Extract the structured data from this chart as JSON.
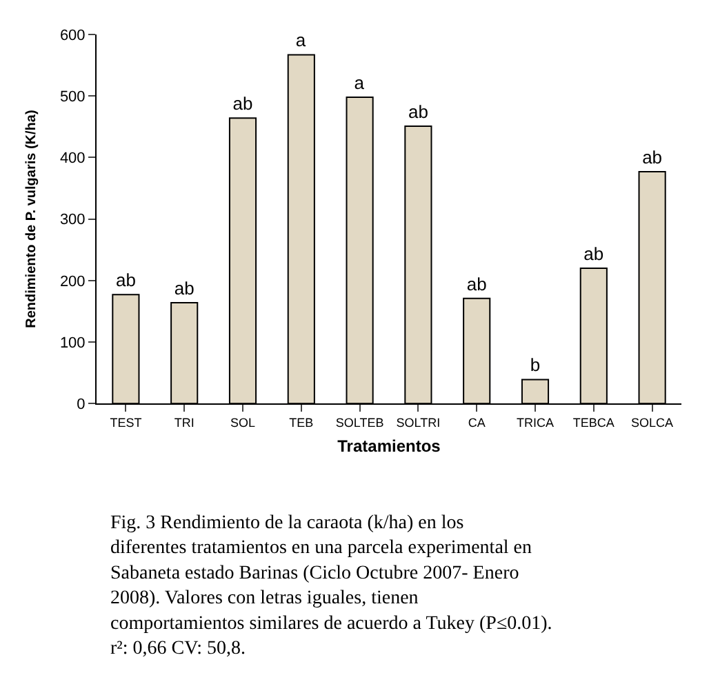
{
  "chart_data": {
    "type": "bar",
    "xlabel": "Tratamientos",
    "ylabel": "Rendimiento de P. vulgaris (K/ha)",
    "categories": [
      "TEST",
      "TRI",
      "SOL",
      "TEB",
      "SOLTEB",
      "SOLTRI",
      "CA",
      "TRICA",
      "TEBCA",
      "SOLCA"
    ],
    "series": [
      {
        "color": "#e2d9c4",
        "values": [
          177,
          164,
          464,
          567,
          498,
          451,
          171,
          39,
          220,
          377
        ],
        "value_labels": [
          "ab",
          "ab",
          "ab",
          "a",
          "a",
          "ab",
          "ab",
          "b",
          "ab",
          "ab"
        ]
      }
    ],
    "ylim": [
      0,
      600
    ],
    "yticks": [
      0,
      100,
      200,
      300,
      400,
      500,
      600
    ],
    "annotations": [
      "Fig. 3 Rendimiento de la caraota (k/ha) en los diferentes tratamientos en una parcela experimental en Sabaneta estado Barinas (Ciclo Octubre 2007- Enero 2008). Valores con letras iguales, tienen comportamientos similares de acuerdo a Tukey (P≤0.01). r²: 0,66 CV: 50,8."
    ]
  }
}
